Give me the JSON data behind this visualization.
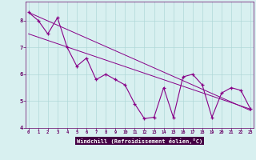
{
  "x": [
    0,
    1,
    2,
    3,
    4,
    5,
    6,
    7,
    8,
    9,
    10,
    11,
    12,
    13,
    14,
    15,
    16,
    17,
    18,
    19,
    20,
    21,
    22,
    23
  ],
  "y_main": [
    8.3,
    8.0,
    7.5,
    8.1,
    7.0,
    6.3,
    6.6,
    5.8,
    6.0,
    5.8,
    5.6,
    4.9,
    4.35,
    4.4,
    5.5,
    4.4,
    5.9,
    6.0,
    5.6,
    4.4,
    5.3,
    5.5,
    5.4,
    4.7
  ],
  "y_line1_start": 8.3,
  "y_line1_end": 4.65,
  "y_line2_start": 7.5,
  "y_line2_end": 4.7,
  "color": "#880088",
  "bg_color": "#d8f0f0",
  "xlabel": "Windchill (Refroidissement éolien,°C)",
  "ylim": [
    4.0,
    8.7
  ],
  "xlim_min": -0.3,
  "xlim_max": 23.3,
  "yticks": [
    4,
    5,
    6,
    7,
    8
  ],
  "xticks": [
    0,
    1,
    2,
    3,
    4,
    5,
    6,
    7,
    8,
    9,
    10,
    11,
    12,
    13,
    14,
    15,
    16,
    17,
    18,
    19,
    20,
    21,
    22,
    23
  ],
  "grid_color": "#b0d8d8",
  "tick_label_color": "#660066",
  "xlabel_bg": "#440044"
}
